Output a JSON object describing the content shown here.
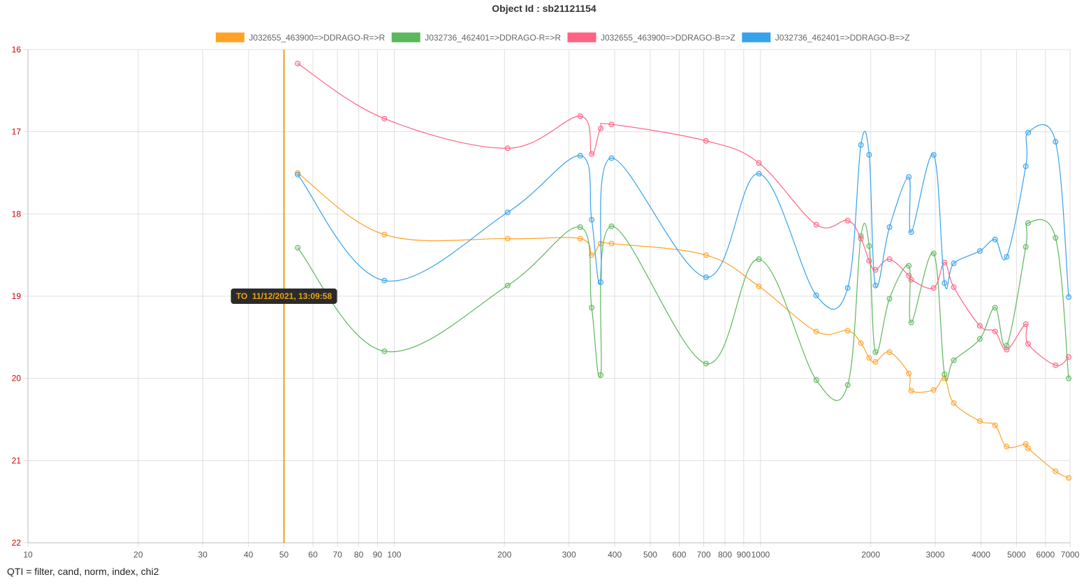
{
  "chart_data": {
    "type": "line",
    "title": "Object Id : sb21121154",
    "x_scale": "log",
    "xlim": [
      10,
      7000
    ],
    "ylim": [
      16,
      22
    ],
    "y_reversed": true,
    "x_ticks": [
      "10",
      "20",
      "30",
      "40",
      "50",
      "60",
      "70",
      "80",
      "90",
      "100",
      "200",
      "300",
      "400",
      "500",
      "600",
      "700",
      "800",
      "900",
      "1000",
      "2000",
      "3000",
      "4000",
      "5000",
      "6000",
      "7000"
    ],
    "x_tick_values": [
      10,
      20,
      30,
      40,
      50,
      60,
      70,
      80,
      90,
      100,
      200,
      300,
      400,
      500,
      600,
      700,
      800,
      900,
      1000,
      2000,
      3000,
      4000,
      5000,
      6000,
      7000
    ],
    "y_ticks": [
      "16",
      "17",
      "18",
      "19",
      "20",
      "21",
      "22"
    ],
    "y_tick_values": [
      16,
      17,
      18,
      19,
      20,
      21,
      22
    ],
    "y_tick_color": "#cc0000",
    "grid": true,
    "legend_position": "top-center",
    "series": [
      {
        "name": "J032655_463900=>DDRAGO-R=>R",
        "color": "#ffa326",
        "points": [
          [
            54.5,
            17.5
          ],
          [
            94,
            18.25
          ],
          [
            204,
            18.3
          ],
          [
            322,
            18.3
          ],
          [
            346,
            18.5
          ],
          [
            366,
            18.36
          ],
          [
            392,
            18.36
          ],
          [
            710,
            18.5
          ],
          [
            990,
            18.88
          ],
          [
            1420,
            19.43
          ],
          [
            1730,
            19.42
          ],
          [
            1880,
            19.57
          ],
          [
            1980,
            19.75
          ],
          [
            2060,
            19.8
          ],
          [
            2250,
            19.68
          ],
          [
            2540,
            19.94
          ],
          [
            2580,
            20.15
          ],
          [
            2970,
            20.14
          ],
          [
            3180,
            20.0
          ],
          [
            3370,
            20.3
          ],
          [
            3970,
            20.52
          ],
          [
            4370,
            20.57
          ],
          [
            4700,
            20.83
          ],
          [
            5300,
            20.8
          ],
          [
            5380,
            20.85
          ],
          [
            6390,
            21.13
          ],
          [
            6940,
            21.21
          ]
        ]
      },
      {
        "name": "J032736_462401=>DDRAGO-R=>R",
        "color": "#5cb85c",
        "points": [
          [
            54.5,
            18.41
          ],
          [
            94,
            19.67
          ],
          [
            204,
            18.87
          ],
          [
            322,
            18.16
          ],
          [
            346,
            19.14
          ],
          [
            366,
            19.96
          ],
          [
            392,
            18.15
          ],
          [
            710,
            19.82
          ],
          [
            990,
            18.55
          ],
          [
            1420,
            20.02
          ],
          [
            1730,
            20.08
          ],
          [
            1880,
            18.27
          ],
          [
            1980,
            18.39
          ],
          [
            2060,
            19.68
          ],
          [
            2250,
            19.03
          ],
          [
            2540,
            18.63
          ],
          [
            2580,
            19.32
          ],
          [
            2970,
            18.48
          ],
          [
            3180,
            19.95
          ],
          [
            3370,
            19.78
          ],
          [
            3970,
            19.52
          ],
          [
            4370,
            19.14
          ],
          [
            4700,
            19.6
          ],
          [
            5300,
            18.4
          ],
          [
            5380,
            18.11
          ],
          [
            6390,
            18.29
          ],
          [
            6940,
            20.0
          ]
        ]
      },
      {
        "name": "J032655_463900=>DDRAGO-B=>Z",
        "color": "#ff6384",
        "points": [
          [
            54.5,
            16.17
          ],
          [
            94,
            16.84
          ],
          [
            204,
            17.2
          ],
          [
            322,
            16.81
          ],
          [
            346,
            17.27
          ],
          [
            366,
            16.96
          ],
          [
            392,
            16.91
          ],
          [
            710,
            17.11
          ],
          [
            990,
            17.38
          ],
          [
            1420,
            18.13
          ],
          [
            1730,
            18.08
          ],
          [
            1880,
            18.3
          ],
          [
            1980,
            18.57
          ],
          [
            2060,
            18.68
          ],
          [
            2250,
            18.55
          ],
          [
            2540,
            18.75
          ],
          [
            2580,
            18.8
          ],
          [
            2970,
            18.9
          ],
          [
            3180,
            18.59
          ],
          [
            3370,
            18.89
          ],
          [
            3970,
            19.36
          ],
          [
            4370,
            19.43
          ],
          [
            4700,
            19.65
          ],
          [
            5300,
            19.34
          ],
          [
            5380,
            19.58
          ],
          [
            6390,
            19.84
          ],
          [
            6940,
            19.74
          ]
        ]
      },
      {
        "name": "J032736_462401=>DDRAGO-B=>Z",
        "color": "#36a2eb",
        "points": [
          [
            54.5,
            17.52
          ],
          [
            94,
            18.81
          ],
          [
            204,
            17.98
          ],
          [
            322,
            17.29
          ],
          [
            346,
            18.07
          ],
          [
            366,
            18.83
          ],
          [
            392,
            17.32
          ],
          [
            710,
            18.77
          ],
          [
            990,
            17.51
          ],
          [
            1420,
            18.99
          ],
          [
            1730,
            18.9
          ],
          [
            1880,
            17.16
          ],
          [
            1980,
            17.28
          ],
          [
            2060,
            18.87
          ],
          [
            2250,
            18.16
          ],
          [
            2540,
            17.55
          ],
          [
            2580,
            18.22
          ],
          [
            2970,
            17.28
          ],
          [
            3180,
            18.84
          ],
          [
            3370,
            18.6
          ],
          [
            3970,
            18.45
          ],
          [
            4370,
            18.31
          ],
          [
            4700,
            18.52
          ],
          [
            5300,
            17.42
          ],
          [
            5380,
            17.01
          ],
          [
            6390,
            17.12
          ],
          [
            6940,
            19.01
          ]
        ]
      }
    ],
    "marker": {
      "x": 50,
      "color": "#e8a317",
      "label": "TO  11/12/2021, 13:09:58",
      "label_y": 19
    }
  },
  "footer_text": "QTI = filter, cand, norm, index, chi2"
}
